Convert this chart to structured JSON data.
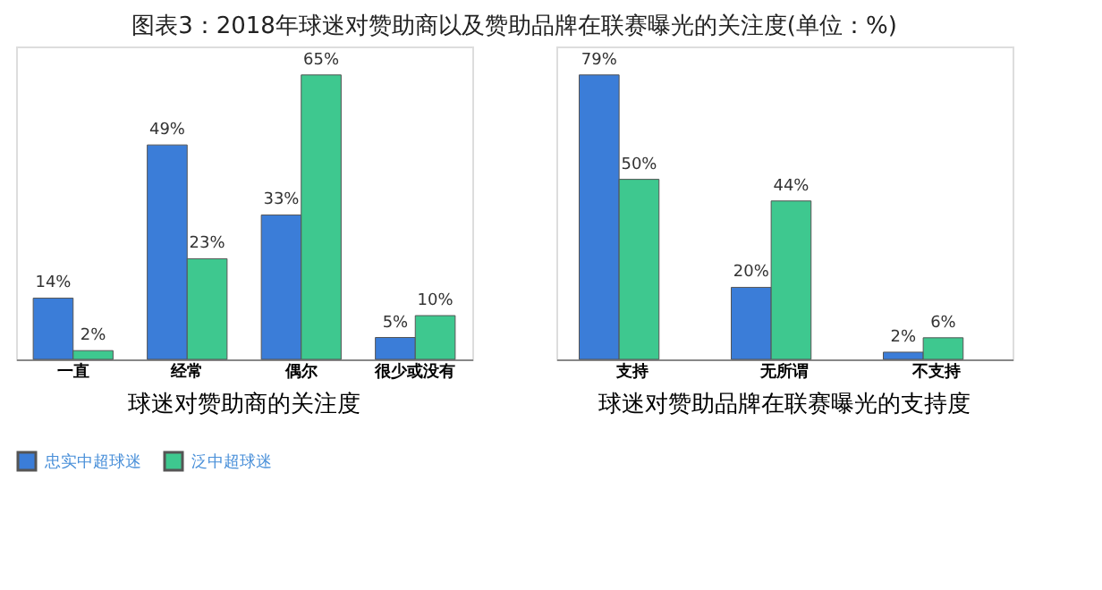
{
  "chart_data": [
    {
      "type": "bar",
      "title": "图表3：2018年球迷对赞助商以及赞助品牌在联赛曝光的关注度(单位：%)",
      "xlabel": "球迷对赞助商的关注度",
      "categories": [
        "一直",
        "经常",
        "偶尔",
        "很少或没有"
      ],
      "legend": "bottom",
      "series": [
        {
          "name": "忠实中超球迷",
          "color": "#3b7dd8",
          "values": [
            14,
            49,
            33,
            5
          ],
          "value_labels": [
            "14%",
            "49%",
            "33%",
            "5%"
          ]
        },
        {
          "name": "泛中超球迷",
          "color": "#3ec88f",
          "values": [
            2,
            23,
            65,
            10
          ],
          "value_labels": [
            "2%",
            "23%",
            "65%",
            "10%"
          ]
        }
      ]
    },
    {
      "type": "bar",
      "xlabel": "球迷对赞助品牌在联赛曝光的支持度",
      "categories": [
        "支持",
        "无所谓",
        "不支持"
      ],
      "legend": "bottom",
      "series": [
        {
          "name": "忠实中超球迷",
          "color": "#3b7dd8",
          "values": [
            79,
            20,
            2
          ],
          "value_labels": [
            "79%",
            "20%",
            "2%"
          ]
        },
        {
          "name": "泛中超球迷",
          "color": "#3ec88f",
          "values": [
            50,
            44,
            6
          ],
          "value_labels": [
            "50%",
            "44%",
            "6%"
          ]
        }
      ]
    }
  ]
}
